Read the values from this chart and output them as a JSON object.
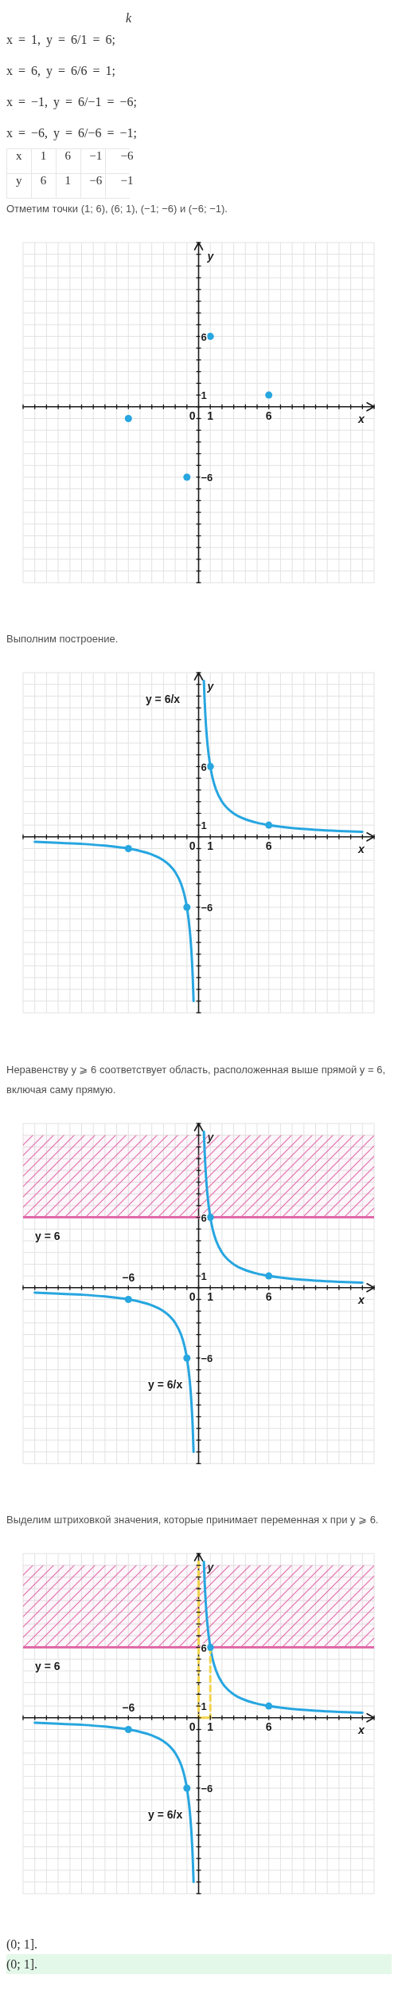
{
  "chart_data": [
    {
      "type": "other",
      "annotations": [
        "k",
        "x = 1, y = 6/1 = 6;",
        "x = 6, y = 6/6 = 1;",
        "x = −1, y = 6/−1 = −6;",
        "x = −6, y = 6/−6 = −1;",
        "x 1 6 −1 −6",
        "y 6 1 −6 −1"
      ]
    },
    {
      "type": "scatter",
      "title": "Отметим точки (1; 6), (6; 1), (−1; −6) и (−6; −1).",
      "xlabel": "x",
      "ylabel": "y",
      "xlim": [
        -15,
        15
      ],
      "ylim": [
        -15,
        14
      ],
      "grid": true,
      "xticks": [
        {
          "value": -15,
          "label": null
        },
        {
          "value": -14,
          "label": null
        },
        {
          "value": -13,
          "label": null
        },
        {
          "value": -12,
          "label": null
        },
        {
          "value": -11,
          "label": null
        },
        {
          "value": -10,
          "label": null
        },
        {
          "value": -9,
          "label": null
        },
        {
          "value": -8,
          "label": null
        },
        {
          "value": -7,
          "label": null
        },
        {
          "value": -6,
          "label": null
        },
        {
          "value": -5,
          "label": null
        },
        {
          "value": -4,
          "label": null
        },
        {
          "value": -3,
          "label": null
        },
        {
          "value": -2,
          "label": null
        },
        {
          "value": -1,
          "label": null
        },
        0,
        1,
        {
          "value": 2,
          "label": null
        },
        {
          "value": 3,
          "label": null
        },
        {
          "value": 4,
          "label": null
        },
        {
          "value": 5,
          "label": null
        },
        6,
        {
          "value": 7,
          "label": null
        },
        {
          "value": 8,
          "label": null
        },
        {
          "value": 9,
          "label": null
        },
        {
          "value": 10,
          "label": null
        },
        {
          "value": 11,
          "label": null
        },
        {
          "value": 12,
          "label": null
        },
        {
          "value": 13,
          "label": null
        },
        {
          "value": 14,
          "label": null
        },
        {
          "value": 15,
          "label": null
        }
      ],
      "yticks": [
        {
          "value": -15,
          "label": null
        },
        {
          "value": -14,
          "label": null
        },
        {
          "value": -13,
          "label": null
        },
        {
          "value": -12,
          "label": null
        },
        {
          "value": -11,
          "label": null
        },
        {
          "value": -10,
          "label": null
        },
        {
          "value": -9,
          "label": null
        },
        {
          "value": -8,
          "label": null
        },
        {
          "value": -7,
          "label": null
        },
        -6,
        {
          "value": -5,
          "label": null
        },
        {
          "value": -4,
          "label": null
        },
        {
          "value": -3,
          "label": null
        },
        {
          "value": -2,
          "label": null
        },
        {
          "value": -1,
          "label": null
        },
        {
          "value": 0,
          "label": null
        },
        1,
        {
          "value": 2,
          "label": null
        },
        {
          "value": 3,
          "label": null
        },
        {
          "value": 4,
          "label": null
        },
        {
          "value": 5,
          "label": null
        },
        6,
        {
          "value": 7,
          "label": null
        },
        {
          "value": 8,
          "label": null
        },
        {
          "value": 9,
          "label": null
        },
        {
          "value": 10,
          "label": null
        },
        {
          "value": 11,
          "label": null
        },
        {
          "value": 12,
          "label": null
        },
        {
          "value": 13,
          "label": null
        },
        {
          "value": 14,
          "label": null
        }
      ],
      "series": [
        {
          "color": "#27a6e0",
          "marker": "circle",
          "x": [
            1,
            6,
            -1,
            -6
          ],
          "values": [
            6,
            1,
            -6,
            -1
          ]
        }
      ]
    },
    {
      "type": "line",
      "title": "Выполним построение.",
      "xlabel": "x",
      "ylabel": "y",
      "xlim": [
        -15,
        15
      ],
      "ylim": [
        -15,
        14
      ],
      "grid": true,
      "xticks": [
        {
          "value": -15,
          "label": null
        },
        {
          "value": -14,
          "label": null
        },
        {
          "value": -13,
          "label": null
        },
        {
          "value": -12,
          "label": null
        },
        {
          "value": -11,
          "label": null
        },
        {
          "value": -10,
          "label": null
        },
        {
          "value": -9,
          "label": null
        },
        {
          "value": -8,
          "label": null
        },
        {
          "value": -7,
          "label": null
        },
        {
          "value": -6,
          "label": null
        },
        {
          "value": -5,
          "label": null
        },
        {
          "value": -4,
          "label": null
        },
        {
          "value": -3,
          "label": null
        },
        {
          "value": -2,
          "label": null
        },
        {
          "value": -1,
          "label": null
        },
        0,
        1,
        {
          "value": 2,
          "label": null
        },
        {
          "value": 3,
          "label": null
        },
        {
          "value": 4,
          "label": null
        },
        {
          "value": 5,
          "label": null
        },
        6,
        {
          "value": 7,
          "label": null
        },
        {
          "value": 8,
          "label": null
        },
        {
          "value": 9,
          "label": null
        },
        {
          "value": 10,
          "label": null
        },
        {
          "value": 11,
          "label": null
        },
        {
          "value": 12,
          "label": null
        },
        {
          "value": 13,
          "label": null
        },
        {
          "value": 14,
          "label": null
        },
        {
          "value": 15,
          "label": null
        }
      ],
      "yticks": [
        {
          "value": -15,
          "label": null
        },
        {
          "value": -14,
          "label": null
        },
        {
          "value": -13,
          "label": null
        },
        {
          "value": -12,
          "label": null
        },
        {
          "value": -11,
          "label": null
        },
        {
          "value": -10,
          "label": null
        },
        {
          "value": -9,
          "label": null
        },
        {
          "value": -8,
          "label": null
        },
        {
          "value": -7,
          "label": null
        },
        -6,
        {
          "value": -5,
          "label": null
        },
        {
          "value": -4,
          "label": null
        },
        {
          "value": -3,
          "label": null
        },
        {
          "value": -2,
          "label": null
        },
        {
          "value": -1,
          "label": null
        },
        {
          "value": 0,
          "label": null
        },
        1,
        {
          "value": 2,
          "label": null
        },
        {
          "value": 3,
          "label": null
        },
        {
          "value": 4,
          "label": null
        },
        {
          "value": 5,
          "label": null
        },
        6,
        {
          "value": 7,
          "label": null
        },
        {
          "value": 8,
          "label": null
        },
        {
          "value": 9,
          "label": null
        },
        {
          "value": 10,
          "label": null
        },
        {
          "value": 11,
          "label": null
        },
        {
          "value": 12,
          "label": null
        },
        {
          "value": 13,
          "label": null
        },
        {
          "value": 14,
          "label": null
        }
      ],
      "series": [
        {
          "name": "y = 6/x",
          "color": "#27a6e0",
          "x": [
            -14,
            -12,
            -10,
            -8,
            -6,
            -5,
            -4,
            -3,
            -2.5,
            -2,
            -1.5,
            -1.2,
            -1,
            -0.75,
            -0.6,
            -0.5,
            -0.43,
            0,
            0.45,
            0.5,
            0.6,
            0.75,
            1,
            1.2,
            1.5,
            2,
            2.5,
            3,
            4,
            5,
            6,
            8,
            10,
            12,
            14
          ],
          "values": [
            -0.43,
            -0.5,
            -0.6,
            -0.75,
            -1,
            -1.2,
            -1.5,
            -2,
            -2.4,
            -3,
            -4,
            -5,
            -6,
            -8,
            -10,
            -12,
            -14,
            null,
            13.3,
            12,
            10,
            8,
            6,
            5,
            4,
            3,
            2.4,
            2,
            1.5,
            1.2,
            1,
            0.75,
            0.6,
            0.5,
            0.43
          ]
        },
        {
          "type": "scatter",
          "color": "#27a6e0",
          "marker": "circle",
          "x": [
            1,
            6,
            -1,
            -6
          ],
          "values": [
            6,
            1,
            -6,
            -1
          ]
        }
      ]
    },
    {
      "type": "line",
      "title": "Неравенству y ⩾ 6 соответствует область, расположенная выше прямой y = 6, включая саму прямую.",
      "xlabel": "x",
      "ylabel": "y",
      "xlim": [
        -15,
        15
      ],
      "ylim": [
        -15,
        14
      ],
      "grid": true,
      "xticks": [
        {
          "value": -15,
          "label": null
        },
        {
          "value": -14,
          "label": null
        },
        {
          "value": -13,
          "label": null
        },
        {
          "value": -12,
          "label": null
        },
        {
          "value": -11,
          "label": null
        },
        {
          "value": -10,
          "label": null
        },
        {
          "value": -9,
          "label": null
        },
        {
          "value": -8,
          "label": null
        },
        {
          "value": -7,
          "label": null
        },
        {
          "value": -6,
          "label": null
        },
        {
          "value": -5,
          "label": null
        },
        {
          "value": -4,
          "label": null
        },
        {
          "value": -3,
          "label": null
        },
        {
          "value": -2,
          "label": null
        },
        {
          "value": -1,
          "label": null
        },
        0,
        1,
        {
          "value": 2,
          "label": null
        },
        {
          "value": 3,
          "label": null
        },
        {
          "value": 4,
          "label": null
        },
        {
          "value": 5,
          "label": null
        },
        6,
        {
          "value": 7,
          "label": null
        },
        {
          "value": 8,
          "label": null
        },
        {
          "value": 9,
          "label": null
        },
        {
          "value": 10,
          "label": null
        },
        {
          "value": 11,
          "label": null
        },
        {
          "value": 12,
          "label": null
        },
        {
          "value": 13,
          "label": null
        },
        {
          "value": 14,
          "label": null
        },
        {
          "value": 15,
          "label": null
        }
      ],
      "yticks": [
        {
          "value": -15,
          "label": null
        },
        {
          "value": -14,
          "label": null
        },
        {
          "value": -13,
          "label": null
        },
        {
          "value": -12,
          "label": null
        },
        {
          "value": -11,
          "label": null
        },
        {
          "value": -10,
          "label": null
        },
        {
          "value": -9,
          "label": null
        },
        {
          "value": -8,
          "label": null
        },
        {
          "value": -7,
          "label": null
        },
        -6,
        {
          "value": -5,
          "label": null
        },
        {
          "value": -4,
          "label": null
        },
        {
          "value": -3,
          "label": null
        },
        {
          "value": -2,
          "label": null
        },
        {
          "value": -1,
          "label": null
        },
        {
          "value": 0,
          "label": null
        },
        1,
        {
          "value": 2,
          "label": null
        },
        {
          "value": 3,
          "label": null
        },
        {
          "value": 4,
          "label": null
        },
        {
          "value": 5,
          "label": null
        },
        6,
        {
          "value": 7,
          "label": null
        },
        {
          "value": 8,
          "label": null
        },
        {
          "value": 9,
          "label": null
        },
        {
          "value": 10,
          "label": null
        },
        {
          "value": 11,
          "label": null
        },
        {
          "value": 12,
          "label": null
        },
        {
          "value": 13,
          "label": null
        },
        {
          "value": 14,
          "label": null
        }
      ],
      "bands": [
        {
          "axis": "y",
          "from": 6,
          "to": 13,
          "color": "#e06aa8"
        }
      ],
      "ref_lines": [
        {
          "axis": "y",
          "value": 6,
          "label": "y = 6",
          "color": "#e06aa8"
        }
      ],
      "annotations": [
        {
          "text": "−6",
          "x": -6,
          "y": -1
        }
      ],
      "series": [
        {
          "name": "y = 6/x",
          "color": "#27a6e0",
          "x": [
            -14,
            -12,
            -10,
            -8,
            -6,
            -5,
            -4,
            -3,
            -2.5,
            -2,
            -1.5,
            -1.2,
            -1,
            -0.75,
            -0.6,
            -0.5,
            -0.43,
            0,
            0.45,
            0.5,
            0.6,
            0.75,
            1,
            1.2,
            1.5,
            2,
            2.5,
            3,
            4,
            5,
            6,
            8,
            10,
            12,
            14
          ],
          "values": [
            -0.43,
            -0.5,
            -0.6,
            -0.75,
            -1,
            -1.2,
            -1.5,
            -2,
            -2.4,
            -3,
            -4,
            -5,
            -6,
            -8,
            -10,
            -12,
            -14,
            null,
            13.3,
            12,
            10,
            8,
            6,
            5,
            4,
            3,
            2.4,
            2,
            1.5,
            1.2,
            1,
            0.75,
            0.6,
            0.5,
            0.43
          ]
        },
        {
          "type": "scatter",
          "color": "#27a6e0",
          "marker": "circle",
          "x": [
            1,
            6,
            -1,
            -6
          ],
          "values": [
            6,
            1,
            -6,
            -1
          ]
        }
      ]
    },
    {
      "type": "line",
      "title": "Выделим штриховкой значения, которые принимает переменная x при y ⩾ 6.",
      "xlabel": "x",
      "ylabel": "y",
      "xlim": [
        -15,
        15
      ],
      "ylim": [
        -15,
        14
      ],
      "grid": true,
      "xticks": [
        {
          "value": -15,
          "label": null
        },
        {
          "value": -14,
          "label": null
        },
        {
          "value": -13,
          "label": null
        },
        {
          "value": -12,
          "label": null
        },
        {
          "value": -11,
          "label": null
        },
        {
          "value": -10,
          "label": null
        },
        {
          "value": -9,
          "label": null
        },
        {
          "value": -8,
          "label": null
        },
        {
          "value": -7,
          "label": null
        },
        {
          "value": -6,
          "label": null
        },
        {
          "value": -5,
          "label": null
        },
        {
          "value": -4,
          "label": null
        },
        {
          "value": -3,
          "label": null
        },
        {
          "value": -2,
          "label": null
        },
        {
          "value": -1,
          "label": null
        },
        0,
        1,
        {
          "value": 2,
          "label": null
        },
        {
          "value": 3,
          "label": null
        },
        {
          "value": 4,
          "label": null
        },
        {
          "value": 5,
          "label": null
        },
        6,
        {
          "value": 7,
          "label": null
        },
        {
          "value": 8,
          "label": null
        },
        {
          "value": 9,
          "label": null
        },
        {
          "value": 10,
          "label": null
        },
        {
          "value": 11,
          "label": null
        },
        {
          "value": 12,
          "label": null
        },
        {
          "value": 13,
          "label": null
        },
        {
          "value": 14,
          "label": null
        },
        {
          "value": 15,
          "label": null
        }
      ],
      "yticks": [
        {
          "value": -15,
          "label": null
        },
        {
          "value": -14,
          "label": null
        },
        {
          "value": -13,
          "label": null
        },
        {
          "value": -12,
          "label": null
        },
        {
          "value": -11,
          "label": null
        },
        {
          "value": -10,
          "label": null
        },
        {
          "value": -9,
          "label": null
        },
        {
          "value": -8,
          "label": null
        },
        {
          "value": -7,
          "label": null
        },
        -6,
        {
          "value": -5,
          "label": null
        },
        {
          "value": -4,
          "label": null
        },
        {
          "value": -3,
          "label": null
        },
        {
          "value": -2,
          "label": null
        },
        {
          "value": -1,
          "label": null
        },
        {
          "value": 0,
          "label": null
        },
        1,
        {
          "value": 2,
          "label": null
        },
        {
          "value": 3,
          "label": null
        },
        {
          "value": 4,
          "label": null
        },
        {
          "value": 5,
          "label": null
        },
        6,
        {
          "value": 7,
          "label": null
        },
        {
          "value": 8,
          "label": null
        },
        {
          "value": 9,
          "label": null
        },
        {
          "value": 10,
          "label": null
        },
        {
          "value": 11,
          "label": null
        },
        {
          "value": 12,
          "label": null
        },
        {
          "value": 13,
          "label": null
        },
        {
          "value": 14,
          "label": null
        }
      ],
      "bands": [
        {
          "axis": "y",
          "from": 6,
          "to": 13,
          "color": "#e06aa8"
        }
      ],
      "ref_lines": [
        {
          "axis": "y",
          "value": 6,
          "label": "y = 6",
          "color": "#e06aa8"
        }
      ],
      "series": [
        {
          "name": "y = 6/x",
          "color": "#27a6e0",
          "x": [
            -14,
            -12,
            -10,
            -8,
            -6,
            -5,
            -4,
            -3,
            -2.5,
            -2,
            -1.5,
            -1.2,
            -1,
            -0.75,
            -0.6,
            -0.5,
            -0.43,
            0,
            0.45,
            0.5,
            0.6,
            0.75,
            1,
            1.2,
            1.5,
            2,
            2.5,
            3,
            4,
            5,
            6,
            8,
            10,
            12,
            14
          ],
          "values": [
            -0.43,
            -0.5,
            -0.6,
            -0.75,
            -1,
            -1.2,
            -1.5,
            -2,
            -2.4,
            -3,
            -4,
            -5,
            -6,
            -8,
            -10,
            -12,
            -14,
            null,
            13.3,
            12,
            10,
            8,
            6,
            5,
            4,
            3,
            2.4,
            2,
            1.5,
            1.2,
            1,
            0.75,
            0.6,
            0.5,
            0.43
          ]
        },
        {
          "type": "scatter",
          "color": "#27a6e0",
          "marker": "circle",
          "x": [
            1,
            6,
            -1,
            -6
          ],
          "values": [
            6,
            1,
            -6,
            -1
          ]
        },
        {
          "color": "#f3d44b",
          "line_style": "dashed",
          "x": [
            0,
            0
          ],
          "values": [
            13.3,
            0
          ]
        },
        {
          "color": "#f3d44b",
          "line_style": "dashed",
          "x": [
            1,
            1
          ],
          "values": [
            6,
            0
          ]
        },
        {
          "color": "#f3d44b",
          "x": [
            0,
            1
          ],
          "values": [
            0,
            0
          ]
        }
      ],
      "annotations": [
        {
          "text": "−6",
          "x": -6,
          "y": -1
        },
        "(0; 1].",
        "(0; 1]."
      ]
    }
  ]
}
